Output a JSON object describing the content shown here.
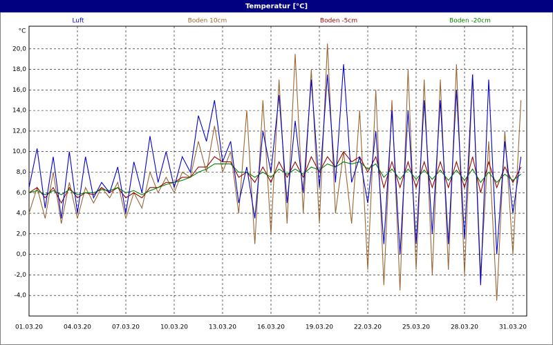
{
  "chart_data": {
    "type": "line",
    "title": "Temperatur [°C]",
    "y_label": "°C",
    "categories": [
      "01.03.20",
      null,
      null,
      null,
      null,
      null,
      "04.03.20",
      null,
      null,
      null,
      null,
      null,
      "07.03.20",
      null,
      null,
      null,
      null,
      null,
      "10.03.20",
      null,
      null,
      null,
      null,
      null,
      "13.03.20",
      null,
      null,
      null,
      null,
      null,
      "16.03.20",
      null,
      null,
      null,
      null,
      null,
      "19.03.20",
      null,
      null,
      null,
      null,
      null,
      "22.03.20",
      null,
      null,
      null,
      null,
      null,
      "25.03.20",
      null,
      null,
      null,
      null,
      null,
      "28.03.20",
      null,
      null,
      null,
      null,
      null,
      "31.03.20",
      null
    ],
    "series": [
      {
        "name": "Luft",
        "color": "#0000cc",
        "values": [
          6.5,
          10.3,
          4.5,
          9.5,
          3.5,
          10,
          4,
          9.5,
          5.5,
          7,
          6,
          8.5,
          4,
          9,
          6,
          11.5,
          7,
          10,
          6.5,
          9.5,
          8,
          13.5,
          11,
          15,
          9,
          11,
          5,
          8.5,
          3.5,
          12,
          8,
          15.5,
          5,
          13,
          6,
          17,
          6.5,
          17.5,
          7,
          18.5,
          7,
          9.5,
          5,
          12,
          1,
          14,
          0,
          14,
          1,
          15,
          2,
          15,
          1,
          16,
          1.5,
          17.5,
          -3,
          17,
          0,
          11,
          4,
          9.5
        ]
      },
      {
        "name": "Boden 10cm",
        "color": "#996633",
        "values": [
          4,
          6.5,
          3.5,
          8,
          3,
          7,
          3.5,
          6.5,
          5,
          6.5,
          5.5,
          7,
          3.5,
          6,
          4.5,
          8,
          6,
          7.5,
          6,
          8,
          7.5,
          11,
          8,
          12.5,
          8,
          10,
          4,
          14,
          1,
          15,
          2,
          17,
          3,
          19.5,
          4,
          18,
          3,
          20.5,
          4,
          10,
          3,
          14,
          -1.5,
          16,
          -3,
          15,
          -3.5,
          18,
          -1.5,
          17,
          -2,
          17,
          -1.5,
          18.5,
          -2,
          17.5,
          -2,
          11,
          -4.5,
          12,
          0,
          15
        ]
      },
      {
        "name": "Boden -5cm",
        "color": "#990000",
        "values": [
          6,
          6.5,
          5.5,
          6.5,
          5,
          6.5,
          5.5,
          6,
          5.8,
          6.5,
          6,
          6.5,
          5.5,
          6,
          5.5,
          6.5,
          6.5,
          7,
          7,
          7.5,
          7.5,
          8.5,
          8.5,
          9.5,
          9,
          9,
          7.5,
          8,
          7,
          8.5,
          7,
          9,
          7.5,
          9,
          7.5,
          9.5,
          8,
          9.5,
          8.5,
          10,
          9,
          9.5,
          8,
          9.5,
          6.5,
          9,
          6.5,
          9,
          6.5,
          9,
          6.5,
          9,
          6.5,
          9,
          6.5,
          9.5,
          6,
          9,
          6.5,
          8.5,
          7,
          8.5
        ]
      },
      {
        "name": "Boden -20cm",
        "color": "#008000",
        "values": [
          6,
          6.2,
          5.8,
          6.2,
          5.8,
          6.3,
          5.8,
          6,
          6,
          6.3,
          6.2,
          6.5,
          6,
          6.2,
          5.8,
          6.2,
          6.5,
          6.8,
          7,
          7.2,
          7.5,
          8,
          8.3,
          8.8,
          8.8,
          8.8,
          8,
          8,
          7.5,
          8,
          7.5,
          8.3,
          7.8,
          8.3,
          7.8,
          8.5,
          8.2,
          8.8,
          8.5,
          9,
          8.8,
          9,
          8.3,
          8.8,
          7.5,
          8.3,
          7.3,
          8.3,
          7.3,
          8.2,
          7.3,
          8.2,
          7.2,
          8.2,
          7.2,
          8.3,
          7,
          8,
          7,
          7.8,
          7.2,
          7.8
        ]
      }
    ],
    "ylim": [
      -6,
      22.2
    ],
    "yticks": [
      {
        "value": -4,
        "label": "-4,0"
      },
      {
        "value": -2,
        "label": "-2,0"
      },
      {
        "value": 0,
        "label": "0,0"
      },
      {
        "value": 2,
        "label": "2,0"
      },
      {
        "value": 4,
        "label": "4,0"
      },
      {
        "value": 6,
        "label": "6,0"
      },
      {
        "value": 8,
        "label": "8,0"
      },
      {
        "value": 10,
        "label": "10,0"
      },
      {
        "value": 12,
        "label": "12,0"
      },
      {
        "value": 14,
        "label": "14,0"
      },
      {
        "value": 16,
        "label": "16,0"
      },
      {
        "value": 18,
        "label": "18,0"
      },
      {
        "value": 20,
        "label": "20,0"
      }
    ],
    "grid": true
  }
}
